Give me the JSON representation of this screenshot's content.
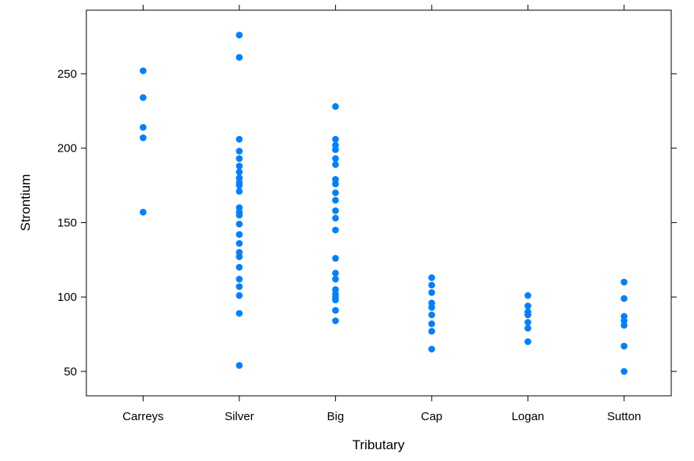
{
  "chart_data": {
    "type": "strip",
    "xlabel": "Tributary",
    "ylabel": "Strontium",
    "categories": [
      "Carreys",
      "Silver",
      "Big",
      "Cap",
      "Logan",
      "Sutton"
    ],
    "values": [
      [
        252,
        234,
        214,
        207,
        157
      ],
      [
        276,
        261,
        206,
        198,
        193,
        188,
        184,
        180,
        177,
        175,
        171,
        160,
        157,
        155,
        149,
        142,
        136,
        130,
        127,
        120,
        112,
        107,
        101,
        89,
        54
      ],
      [
        228,
        206,
        202,
        199,
        193,
        189,
        179,
        176,
        170,
        165,
        158,
        153,
        145,
        126,
        116,
        112,
        105,
        102,
        100,
        98,
        91,
        84
      ],
      [
        113,
        108,
        103,
        96,
        93,
        88,
        82,
        77,
        65
      ],
      [
        101,
        94,
        90,
        88,
        83,
        79,
        70
      ],
      [
        110,
        99,
        87,
        84,
        81,
        67,
        50
      ]
    ],
    "color": "#0080ff",
    "ylim": [
      33.6,
      292.7
    ],
    "yticks": [
      50,
      100,
      150,
      200,
      250
    ]
  }
}
